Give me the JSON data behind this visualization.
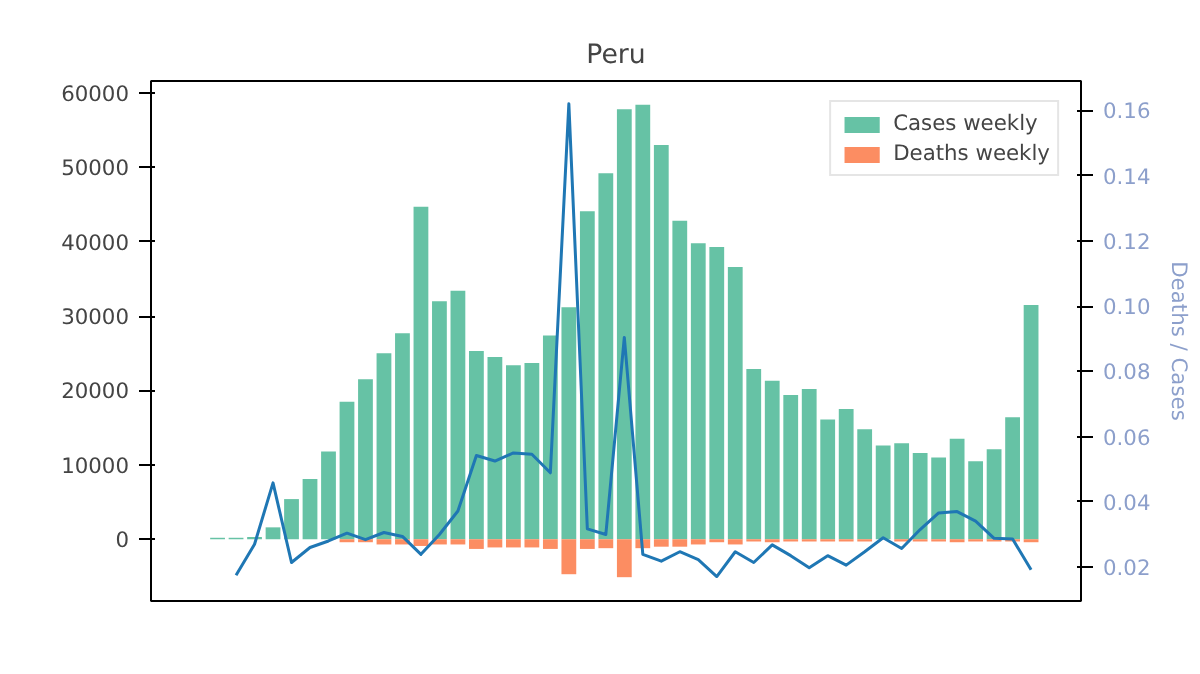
{
  "chart_data": {
    "type": "bar",
    "title": "Peru",
    "y2label": "Deaths / Cases",
    "categories": [
      null,
      null,
      null,
      null,
      null,
      null,
      null,
      null,
      null,
      null,
      null,
      null,
      null,
      null,
      null,
      null,
      null,
      null,
      null,
      null,
      null,
      null,
      null,
      null,
      null,
      null,
      null,
      null,
      null,
      null,
      null,
      null,
      null,
      null,
      null,
      null,
      null,
      null,
      null,
      null,
      null,
      null,
      null,
      null,
      null
    ],
    "series": [
      {
        "name": "Cases weekly",
        "color": "#66c2a5",
        "values": [
          200,
          200,
          300,
          1600,
          5400,
          8100,
          11800,
          18500,
          21500,
          25000,
          27700,
          44700,
          32000,
          33400,
          25300,
          24500,
          23400,
          23700,
          27400,
          31200,
          44100,
          49200,
          57800,
          58400,
          53000,
          42800,
          39800,
          39300,
          36600,
          22900,
          21300,
          19400,
          20200,
          16100,
          17500,
          14800,
          12600,
          12900,
          11600,
          11000,
          13500,
          10500,
          12100,
          16400,
          31500
        ]
      },
      {
        "name": "Deaths weekly",
        "color": "#fc8d62",
        "values": [
          0,
          0,
          0,
          0,
          0,
          0,
          0,
          -400,
          -400,
          -700,
          -700,
          -900,
          -700,
          -700,
          -1300,
          -1100,
          -1100,
          -1100,
          -1300,
          -4700,
          -1300,
          -1200,
          -5100,
          -1200,
          -1000,
          -1000,
          -700,
          -400,
          -700,
          -300,
          -400,
          -300,
          -300,
          -300,
          -300,
          -300,
          null,
          -300,
          -300,
          -300,
          -400,
          -300,
          -300,
          -300,
          -400
        ]
      },
      {
        "type": "line",
        "axis": "y2",
        "color": "#1f77b4",
        "values": [
          null,
          0.0175,
          0.027,
          0.0458,
          0.0214,
          0.026,
          0.028,
          0.0304,
          0.0284,
          0.0306,
          0.0294,
          0.0239,
          0.03,
          0.0372,
          0.0542,
          0.0525,
          0.055,
          0.0546,
          0.0489,
          0.162,
          0.0317,
          0.03,
          0.0904,
          0.0239,
          0.0218,
          0.0247,
          0.0223,
          0.0171,
          0.0247,
          0.0214,
          0.0268,
          0.0235,
          0.0198,
          0.0235,
          0.0206,
          0.0247,
          0.029,
          0.0257,
          0.0315,
          0.0366,
          0.037,
          0.0341,
          0.0288,
          0.0286,
          0.0192
        ]
      }
    ],
    "ylim": [
      -8300,
      61600
    ],
    "yticks": [
      0,
      10000,
      20000,
      30000,
      40000,
      50000,
      60000
    ],
    "y2lim": [
      0.0096,
      0.169
    ],
    "y2ticks": [
      {
        "value": 0.02,
        "label": "0.02"
      },
      {
        "value": 0.04,
        "label": "0.04"
      },
      {
        "value": 0.06,
        "label": "0.06"
      },
      {
        "value": 0.08,
        "label": "0.08"
      },
      {
        "value": 0.1,
        "label": "0.10"
      },
      {
        "value": 0.12,
        "label": "0.12"
      },
      {
        "value": 0.14,
        "label": "0.14"
      },
      {
        "value": 0.16,
        "label": "0.16"
      }
    ],
    "grid": false,
    "legend": "top right",
    "tick_labels": "y"
  }
}
